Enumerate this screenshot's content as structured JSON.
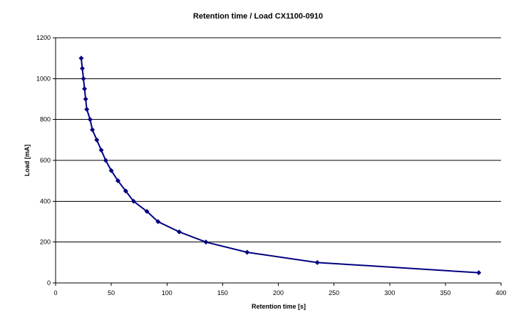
{
  "chart_data": {
    "type": "line",
    "title": "Retention time / Load CX1100-0910",
    "xlabel": "Retention time [s]",
    "ylabel": "Load [mA]",
    "xlim": [
      0,
      400
    ],
    "ylim": [
      0,
      1200
    ],
    "xticks": [
      0,
      50,
      100,
      150,
      200,
      250,
      300,
      350,
      400
    ],
    "yticks": [
      0,
      200,
      400,
      600,
      800,
      1000,
      1200
    ],
    "grid": "horizontal",
    "legend": "none",
    "series": [
      {
        "color": "#000080",
        "marker": "diamond",
        "points": [
          [
            23,
            1100
          ],
          [
            24,
            1050
          ],
          [
            25,
            1000
          ],
          [
            26,
            950
          ],
          [
            27,
            900
          ],
          [
            28,
            850
          ],
          [
            31,
            800
          ],
          [
            33,
            750
          ],
          [
            37,
            700
          ],
          [
            41,
            650
          ],
          [
            45,
            600
          ],
          [
            50,
            550
          ],
          [
            56,
            500
          ],
          [
            63,
            450
          ],
          [
            70,
            400
          ],
          [
            82,
            350
          ],
          [
            92,
            300
          ],
          [
            111,
            250
          ],
          [
            135,
            200
          ],
          [
            172,
            150
          ],
          [
            235,
            100
          ],
          [
            380,
            50
          ]
        ]
      }
    ]
  }
}
